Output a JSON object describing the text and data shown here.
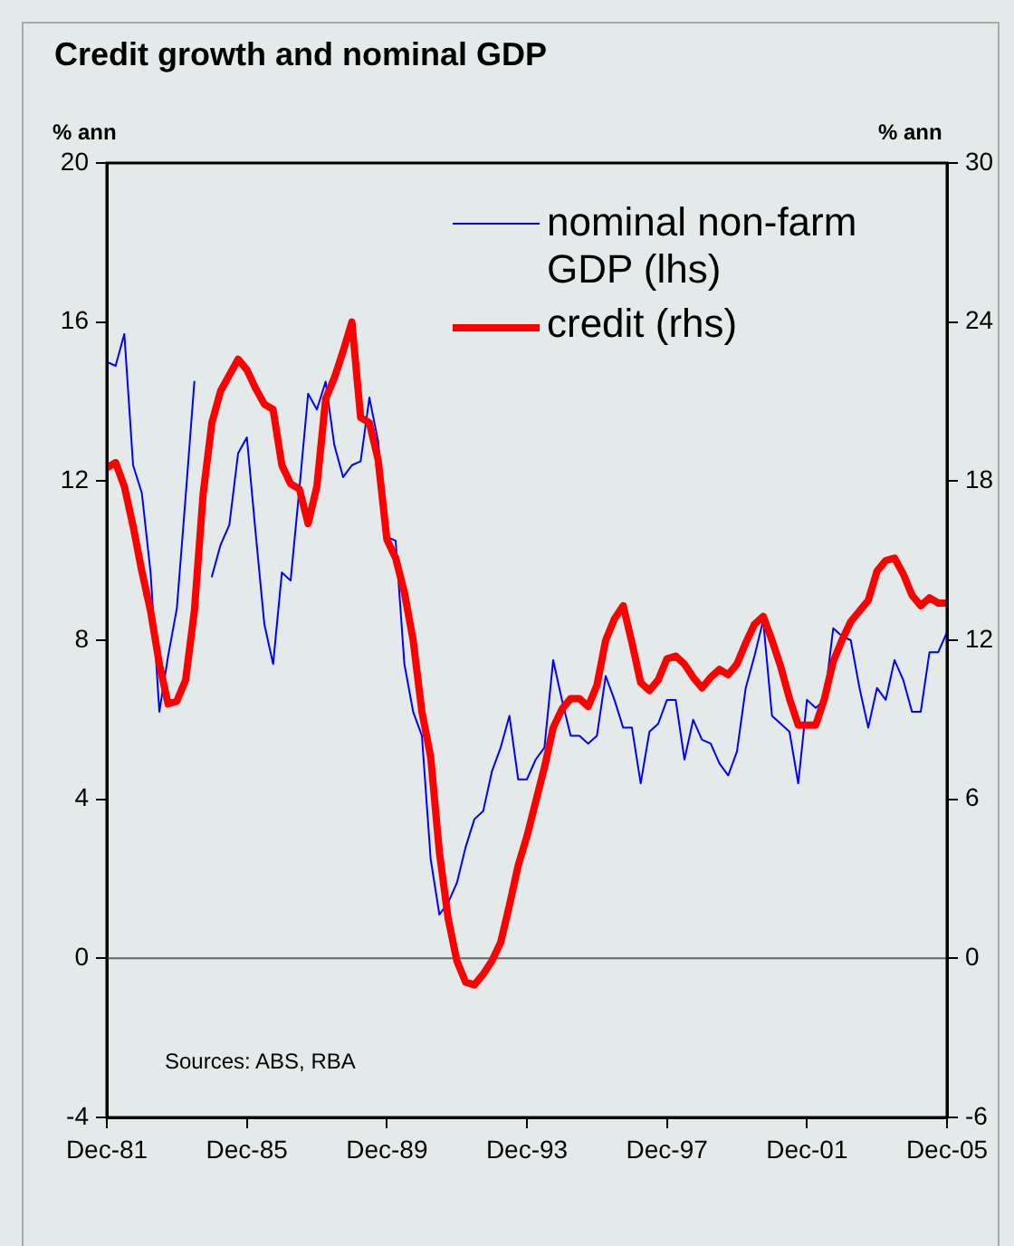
{
  "chart_data": {
    "type": "line",
    "title": "Credit growth and nominal GDP",
    "ylabel": "% ann",
    "y2label": "% ann",
    "annotations": [
      "Sources: ABS, RBA"
    ],
    "x": [
      "1981-12",
      "1982-03",
      "1982-06",
      "1982-09",
      "1982-12",
      "1983-03",
      "1983-06",
      "1983-09",
      "1983-12",
      "1984-03",
      "1984-06",
      "1984-09",
      "1984-12",
      "1985-03",
      "1985-06",
      "1985-09",
      "1985-12",
      "1986-03",
      "1986-06",
      "1986-09",
      "1986-12",
      "1987-03",
      "1987-06",
      "1987-09",
      "1987-12",
      "1988-03",
      "1988-06",
      "1988-09",
      "1988-12",
      "1989-03",
      "1989-06",
      "1989-09",
      "1989-12",
      "1990-03",
      "1990-06",
      "1990-09",
      "1990-12",
      "1991-03",
      "1991-06",
      "1991-09",
      "1991-12",
      "1992-03",
      "1992-06",
      "1992-09",
      "1992-12",
      "1993-03",
      "1993-06",
      "1993-09",
      "1993-12",
      "1994-03",
      "1994-06",
      "1994-09",
      "1994-12",
      "1995-03",
      "1995-06",
      "1995-09",
      "1995-12",
      "1996-03",
      "1996-06",
      "1996-09",
      "1996-12",
      "1997-03",
      "1997-06",
      "1997-09",
      "1997-12",
      "1998-03",
      "1998-06",
      "1998-09",
      "1998-12",
      "1999-03",
      "1999-06",
      "1999-09",
      "1999-12",
      "2000-03",
      "2000-06",
      "2000-09",
      "2000-12",
      "2001-03",
      "2001-06",
      "2001-09",
      "2001-12",
      "2002-03",
      "2002-06",
      "2002-09",
      "2002-12",
      "2003-03",
      "2003-06",
      "2003-09",
      "2003-12",
      "2004-03",
      "2004-06",
      "2004-09",
      "2004-12",
      "2005-03",
      "2005-06",
      "2005-09",
      "2005-12"
    ],
    "series": [
      {
        "name": "nominal non-farm GDP (lhs)",
        "color": "#0000ff",
        "values": [
          15.0,
          14.9,
          15.7,
          12.4,
          11.7,
          9.7,
          6.2,
          7.6,
          8.8,
          11.6,
          14.5,
          null,
          9.6,
          10.4,
          10.9,
          12.7,
          13.1,
          10.7,
          8.4,
          7.4,
          9.7,
          9.5,
          11.8,
          14.2,
          13.8,
          14.5,
          12.9,
          12.1,
          12.4,
          12.5,
          14.1,
          13.0,
          10.6,
          10.5,
          7.4,
          6.2,
          5.6,
          2.5,
          1.1,
          1.4,
          1.9,
          2.8,
          3.5,
          3.7,
          4.7,
          5.3,
          6.1,
          4.5,
          4.5,
          5.0,
          5.3,
          7.5,
          6.5,
          5.6,
          5.6,
          5.4,
          5.6,
          7.1,
          6.5,
          5.8,
          5.8,
          4.4,
          5.7,
          5.9,
          6.5,
          6.5,
          5.0,
          6.0,
          5.5,
          5.4,
          4.9,
          4.6,
          5.2,
          6.8,
          7.6,
          8.5,
          6.1,
          5.9,
          5.7,
          4.4,
          6.5,
          6.3,
          6.5,
          8.3,
          8.1,
          8.0,
          6.8,
          5.8,
          6.8,
          6.5,
          7.5,
          7.0,
          6.2,
          6.2,
          7.7,
          7.7,
          8.2
        ]
      },
      {
        "name": "credit (rhs)",
        "color": "#ff0000",
        "axis": "y2",
        "values": [
          18.5,
          18.7,
          17.8,
          16.3,
          14.6,
          13.1,
          11.1,
          9.6,
          9.7,
          10.5,
          13.1,
          17.5,
          20.2,
          21.4,
          22.0,
          22.6,
          22.2,
          21.5,
          20.9,
          20.7,
          18.6,
          17.9,
          17.7,
          16.4,
          17.8,
          21.1,
          21.9,
          22.9,
          24.0,
          20.4,
          20.2,
          18.8,
          15.8,
          15.1,
          13.8,
          12.0,
          9.3,
          7.6,
          4.0,
          1.5,
          -0.1,
          -0.9,
          -1.0,
          -0.6,
          -0.1,
          0.6,
          2.0,
          3.5,
          4.6,
          5.9,
          7.2,
          8.7,
          9.4,
          9.8,
          9.8,
          9.5,
          10.3,
          12.0,
          12.8,
          13.3,
          11.9,
          10.4,
          10.1,
          10.5,
          11.3,
          11.4,
          11.1,
          10.6,
          10.2,
          10.6,
          10.9,
          10.7,
          11.1,
          11.9,
          12.6,
          12.9,
          12.0,
          11.0,
          9.8,
          8.8,
          8.8,
          8.8,
          9.8,
          11.2,
          12.0,
          12.7,
          13.1,
          13.5,
          14.6,
          15.0,
          15.1,
          14.5,
          13.7,
          13.3,
          13.6,
          13.4,
          13.4
        ]
      }
    ],
    "xlim": [
      "1981-12",
      "2005-12"
    ],
    "xticks": [
      {
        "value": "1981-12",
        "label": "Dec-81"
      },
      {
        "value": "1985-12",
        "label": "Dec-85"
      },
      {
        "value": "1989-12",
        "label": "Dec-89"
      },
      {
        "value": "1993-12",
        "label": "Dec-93"
      },
      {
        "value": "1997-12",
        "label": "Dec-97"
      },
      {
        "value": "2001-12",
        "label": "Dec-01"
      },
      {
        "value": "2005-12",
        "label": "Dec-05"
      }
    ],
    "ylim": [
      -4,
      20
    ],
    "yticks": [
      -4,
      0,
      4,
      8,
      12,
      16,
      20
    ],
    "y2lim": [
      -6,
      30
    ],
    "y2ticks": [
      -6,
      0,
      6,
      12,
      18,
      24,
      30
    ],
    "ref_lines": [
      {
        "axis": "y",
        "value": 0,
        "color": "#666666"
      }
    ],
    "grid": false,
    "legend": "top right",
    "marker": "none",
    "line_style": "solid"
  }
}
